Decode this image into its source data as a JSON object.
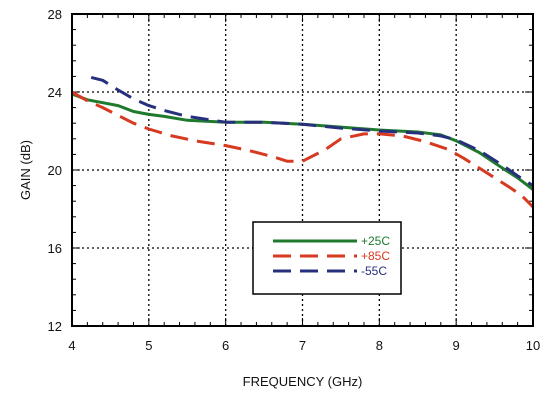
{
  "chart_data": {
    "type": "line",
    "title": "",
    "xlabel": "FREQUENCY (GHz)",
    "ylabel": "GAIN (dB)",
    "xlim": [
      4,
      10
    ],
    "ylim": [
      12,
      28
    ],
    "xticks": [
      4,
      5,
      6,
      7,
      8,
      9,
      10
    ],
    "yticks": [
      12,
      16,
      20,
      24,
      28
    ],
    "x_minor_step": 0.2,
    "y_minor_step": 0.8,
    "grid": true,
    "grid_style": "dotted",
    "legend_position": "lower-right",
    "series": [
      {
        "name": "+25C",
        "color": "#1f7a2e",
        "dash": "solid",
        "points": [
          [
            4.0,
            23.9
          ],
          [
            4.2,
            23.6
          ],
          [
            4.4,
            23.45
          ],
          [
            4.6,
            23.3
          ],
          [
            4.8,
            23.0
          ],
          [
            5.0,
            22.85
          ],
          [
            5.2,
            22.75
          ],
          [
            5.5,
            22.55
          ],
          [
            6.0,
            22.45
          ],
          [
            6.5,
            22.45
          ],
          [
            7.0,
            22.35
          ],
          [
            7.5,
            22.2
          ],
          [
            8.0,
            22.05
          ],
          [
            8.5,
            21.95
          ],
          [
            8.8,
            21.8
          ],
          [
            9.0,
            21.5
          ],
          [
            9.3,
            20.9
          ],
          [
            9.6,
            20.1
          ],
          [
            9.8,
            19.6
          ],
          [
            10.0,
            19.0
          ]
        ]
      },
      {
        "name": "+85C",
        "color": "#d73a20",
        "dash": "long-dash",
        "points": [
          [
            4.0,
            24.0
          ],
          [
            4.2,
            23.55
          ],
          [
            4.4,
            23.2
          ],
          [
            4.6,
            22.8
          ],
          [
            4.8,
            22.4
          ],
          [
            5.0,
            22.1
          ],
          [
            5.3,
            21.75
          ],
          [
            5.6,
            21.5
          ],
          [
            6.0,
            21.25
          ],
          [
            6.3,
            21.0
          ],
          [
            6.6,
            20.7
          ],
          [
            6.8,
            20.45
          ],
          [
            7.0,
            20.45
          ],
          [
            7.3,
            21.05
          ],
          [
            7.5,
            21.6
          ],
          [
            7.8,
            21.85
          ],
          [
            8.0,
            21.85
          ],
          [
            8.3,
            21.75
          ],
          [
            8.6,
            21.45
          ],
          [
            8.9,
            21.05
          ],
          [
            9.1,
            20.6
          ],
          [
            9.3,
            20.1
          ],
          [
            9.5,
            19.6
          ],
          [
            9.7,
            19.1
          ],
          [
            9.85,
            18.7
          ],
          [
            10.0,
            18.1
          ]
        ]
      },
      {
        "name": "-55C",
        "color": "#27307d",
        "dash": "long-dash",
        "points": [
          [
            4.25,
            24.75
          ],
          [
            4.4,
            24.6
          ],
          [
            4.6,
            24.1
          ],
          [
            4.8,
            23.65
          ],
          [
            5.0,
            23.3
          ],
          [
            5.2,
            23.05
          ],
          [
            5.5,
            22.75
          ],
          [
            6.0,
            22.45
          ],
          [
            6.5,
            22.45
          ],
          [
            7.0,
            22.35
          ],
          [
            7.5,
            22.15
          ],
          [
            8.0,
            22.0
          ],
          [
            8.5,
            21.9
          ],
          [
            8.8,
            21.75
          ],
          [
            9.0,
            21.55
          ],
          [
            9.3,
            21.0
          ],
          [
            9.6,
            20.25
          ],
          [
            9.8,
            19.7
          ],
          [
            10.0,
            19.2
          ]
        ]
      }
    ]
  }
}
